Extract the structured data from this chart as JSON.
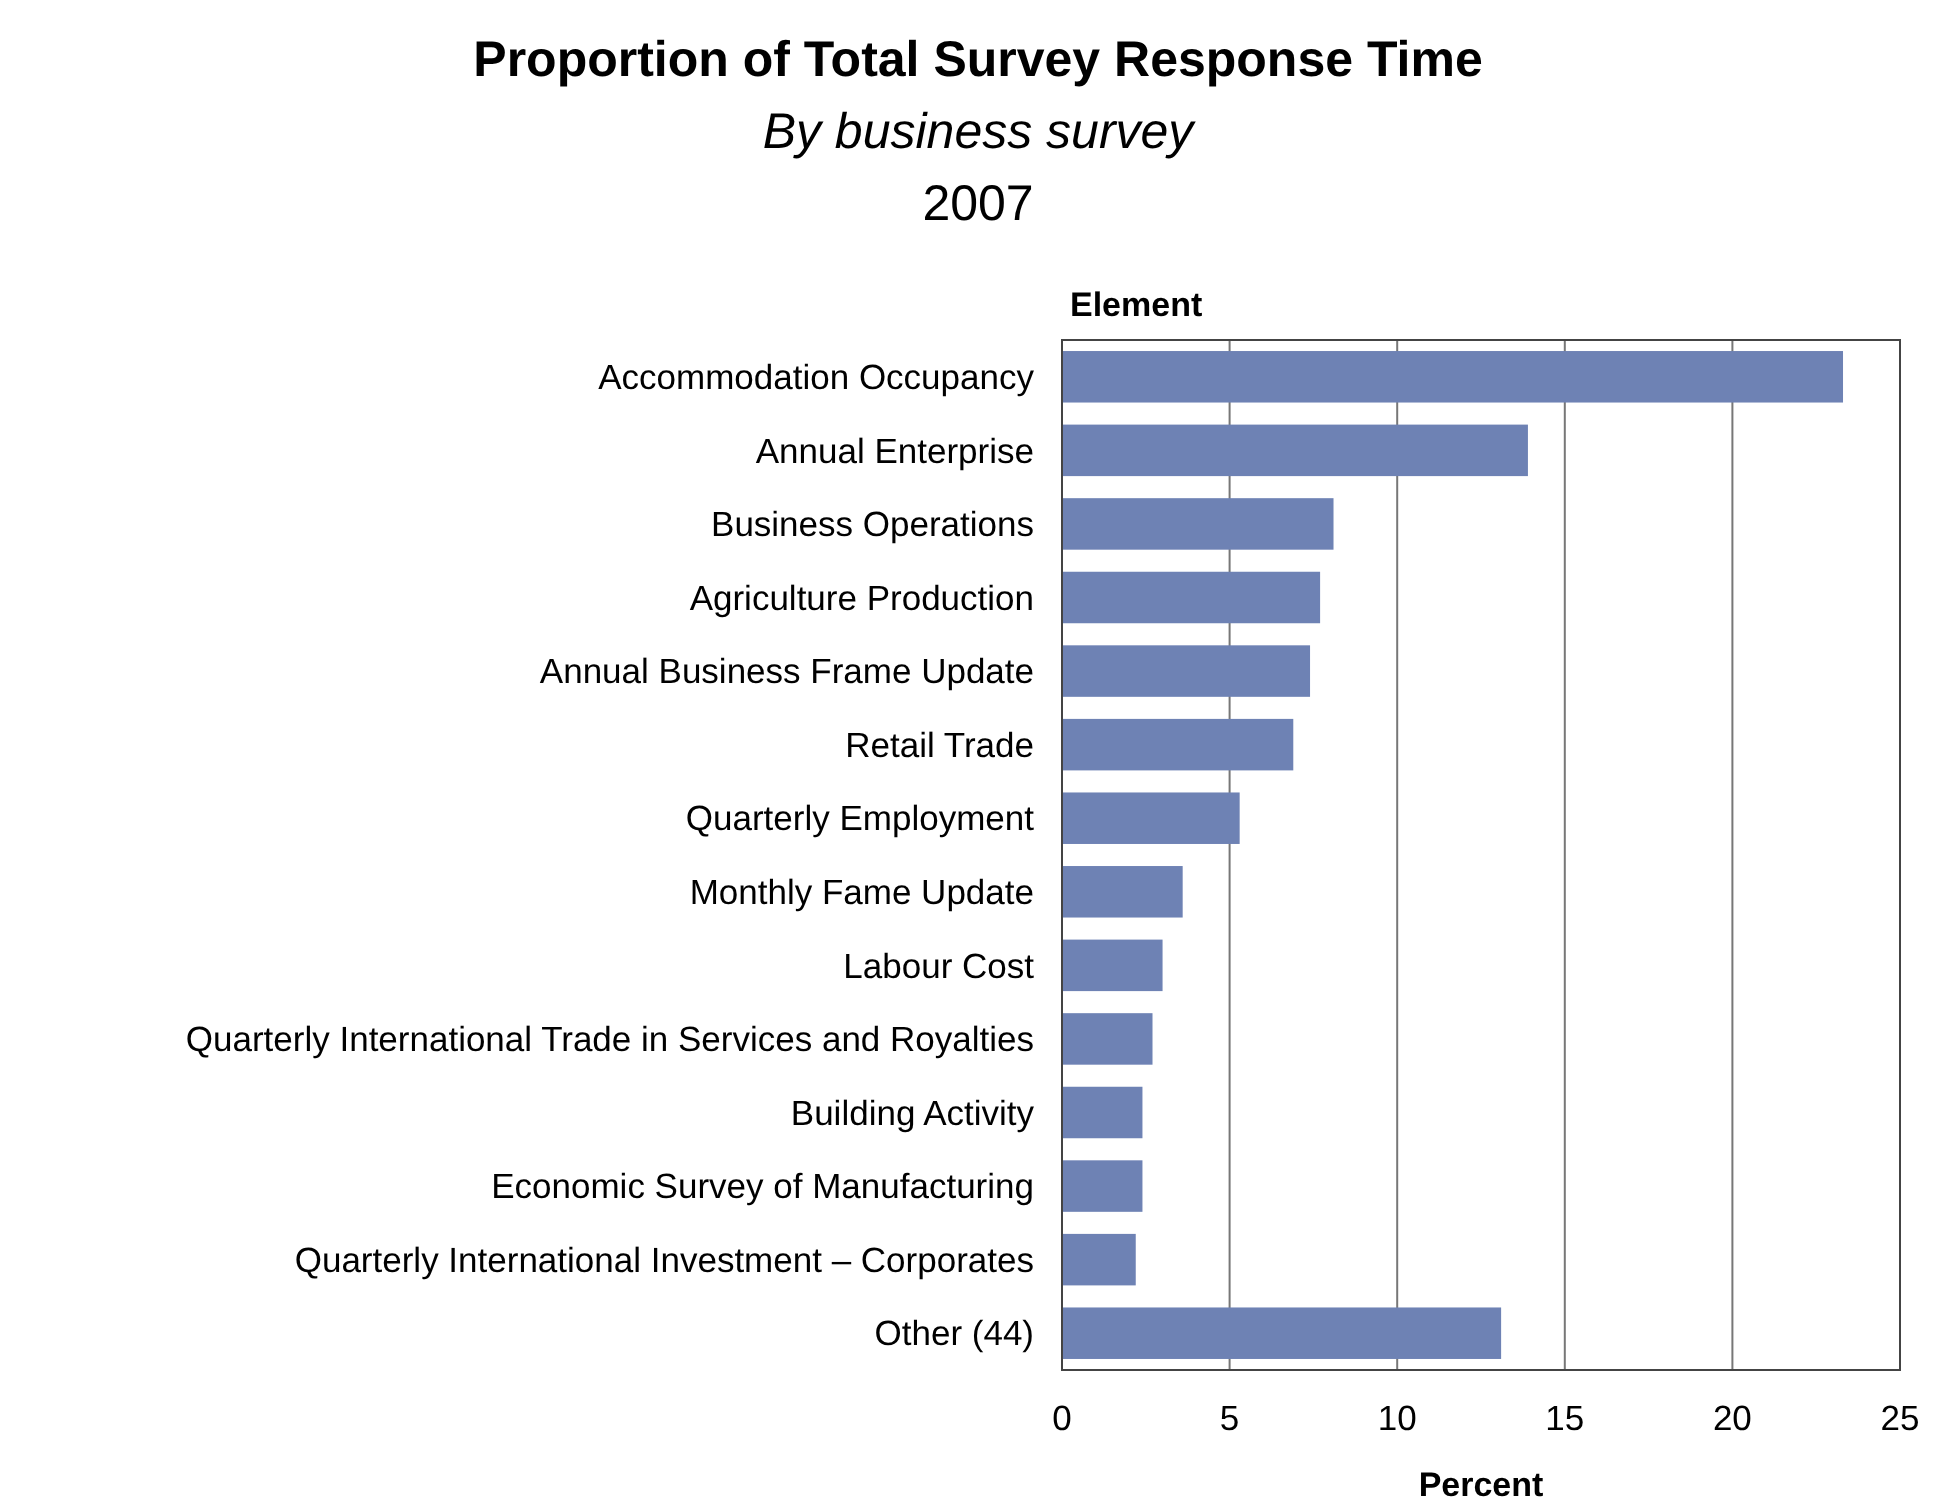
{
  "chart_data": {
    "type": "bar",
    "orientation": "horizontal",
    "title": "Proportion of Total Survey Response Time",
    "subtitle": "By business survey",
    "annotations": [
      "2007"
    ],
    "ylabel": "Element",
    "xlabel": "Percent",
    "categories": [
      "Accommodation Occupancy",
      "Annual Enterprise",
      "Business Operations",
      "Agriculture Production",
      "Annual Business Frame Update",
      "Retail Trade",
      "Quarterly Employment",
      "Monthly Fame Update",
      "Labour Cost",
      "Quarterly International Trade in Services and Royalties",
      "Building Activity",
      "Economic Survey of Manufacturing",
      "Quarterly International Investment – Corporates",
      "Other (44)"
    ],
    "values": [
      23.3,
      13.9,
      8.1,
      7.7,
      7.4,
      6.9,
      5.3,
      3.6,
      3.0,
      2.7,
      2.4,
      2.4,
      2.2,
      13.1
    ],
    "color": "#6e82b4",
    "xlim": [
      0,
      25
    ],
    "xticks": [
      0,
      5,
      10,
      15,
      20,
      25
    ],
    "grid": "x"
  }
}
